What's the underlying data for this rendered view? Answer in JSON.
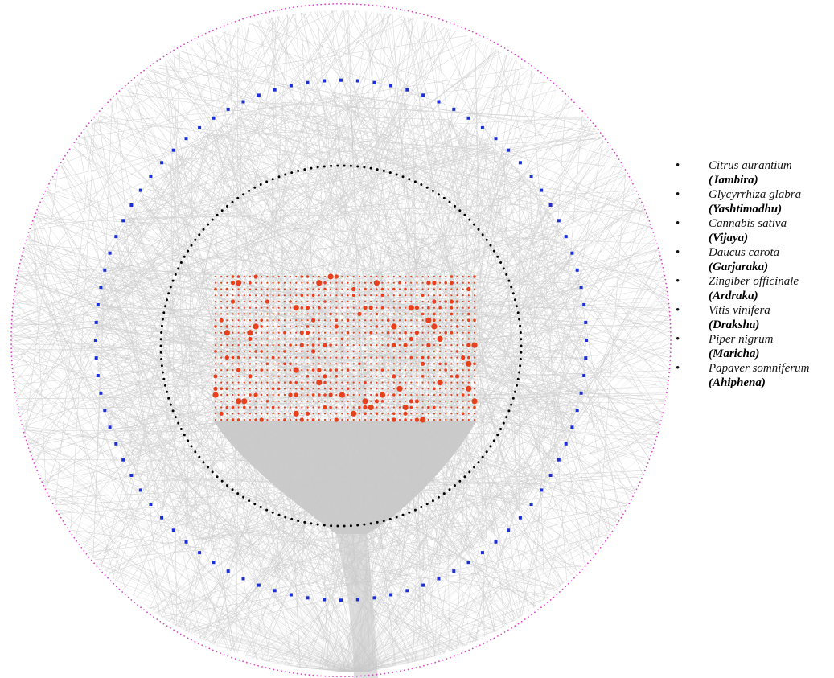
{
  "legend": {
    "items": [
      {
        "scientific": "Citrus aurantium",
        "common": "(Jambira)"
      },
      {
        "scientific": "Glycyrrhiza glabra",
        "common": "(Yashtimadhu)"
      },
      {
        "scientific": "Cannabis sativa",
        "common": "(Vijaya)"
      },
      {
        "scientific": "Daucus carota",
        "common": "(Garjaraka)"
      },
      {
        "scientific": "Zingiber officinale",
        "common": "(Ardraka)"
      },
      {
        "scientific": "Vitis vinifera",
        "common": "(Draksha)"
      },
      {
        "scientific": "Piper nigrum",
        "common": "(Maricha)"
      },
      {
        "scientific": "Papaver somniferum",
        "common": "(Ahiphena)"
      }
    ]
  },
  "colors": {
    "background": "#ffffff",
    "edge": "#c8c8c8",
    "outer_ring": "#e040c8",
    "middle_ring": "#1c2fd6",
    "inner_ring": "#000000",
    "core_nodes": "#e8401c"
  }
}
